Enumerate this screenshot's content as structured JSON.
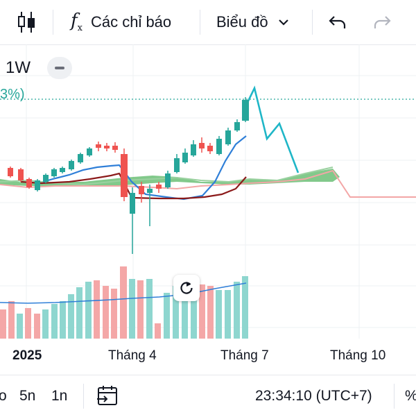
{
  "toolbar": {
    "indicators_label": "Các chỉ báo",
    "chart_type_label": "Biểu đồ"
  },
  "chart": {
    "timeframe": "1W",
    "price_change_text": "3%)",
    "x_labels": [
      "2025",
      "Tháng 4",
      "Tháng 7",
      "Tháng 10"
    ]
  },
  "bottombar": {
    "ranges": [
      "o",
      "5n",
      "1n"
    ],
    "time": "23:34:10 (UTC+7)",
    "percent": "%"
  },
  "colors": {
    "up": "#26a69a",
    "down": "#ef5350",
    "volume_up": "#8ed6cf",
    "volume_down": "#f4a7a7",
    "ma_blue": "#2f7fd8",
    "ma_darkred": "#8b1a1a",
    "forecast": "#1fb6c7",
    "cloud_green": "#6cbf77"
  }
}
